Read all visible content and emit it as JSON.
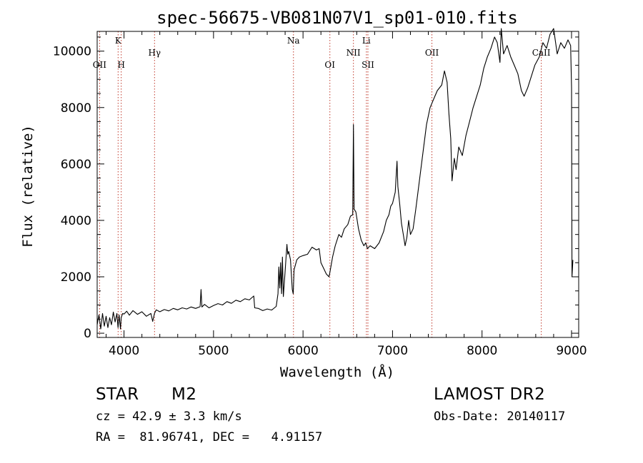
{
  "chart_data": {
    "type": "line",
    "title": "spec-56675-VB081N07V1_sp01-010.fits",
    "xlabel": "Wavelength (Å)",
    "ylabel": "Flux (relative)",
    "xlim": [
      3700,
      9080
    ],
    "ylim": [
      -150,
      10700
    ],
    "x_ticks": [
      4000,
      5000,
      6000,
      7000,
      8000,
      9000
    ],
    "x_tick_labels": [
      "4000",
      "5000",
      "6000",
      "7000",
      "8000",
      "9000"
    ],
    "y_ticks": [
      0,
      2000,
      4000,
      6000,
      8000,
      10000
    ],
    "y_tick_labels": [
      "0",
      "2000",
      "4000",
      "6000",
      "8000",
      "10000"
    ],
    "grid": false,
    "series": [
      {
        "color": "#000000",
        "points": [
          [
            3700,
            300
          ],
          [
            3720,
            650
          ],
          [
            3740,
            150
          ],
          [
            3760,
            700
          ],
          [
            3780,
            250
          ],
          [
            3800,
            600
          ],
          [
            3820,
            200
          ],
          [
            3840,
            550
          ],
          [
            3860,
            300
          ],
          [
            3880,
            750
          ],
          [
            3900,
            400
          ],
          [
            3920,
            700
          ],
          [
            3933,
            200
          ],
          [
            3945,
            650
          ],
          [
            3960,
            150
          ],
          [
            3968,
            550
          ],
          [
            3985,
            700
          ],
          [
            4000,
            680
          ],
          [
            4030,
            780
          ],
          [
            4060,
            640
          ],
          [
            4100,
            800
          ],
          [
            4150,
            670
          ],
          [
            4200,
            760
          ],
          [
            4250,
            600
          ],
          [
            4300,
            700
          ],
          [
            4320,
            420
          ],
          [
            4340,
            700
          ],
          [
            4360,
            830
          ],
          [
            4400,
            760
          ],
          [
            4450,
            840
          ],
          [
            4500,
            790
          ],
          [
            4550,
            880
          ],
          [
            4600,
            830
          ],
          [
            4650,
            900
          ],
          [
            4700,
            860
          ],
          [
            4750,
            930
          ],
          [
            4800,
            880
          ],
          [
            4850,
            940
          ],
          [
            4861,
            1550
          ],
          [
            4870,
            930
          ],
          [
            4900,
            1020
          ],
          [
            4950,
            900
          ],
          [
            5000,
            980
          ],
          [
            5050,
            1050
          ],
          [
            5100,
            1000
          ],
          [
            5150,
            1120
          ],
          [
            5200,
            1060
          ],
          [
            5250,
            1170
          ],
          [
            5300,
            1120
          ],
          [
            5350,
            1220
          ],
          [
            5400,
            1180
          ],
          [
            5450,
            1320
          ],
          [
            5460,
            900
          ],
          [
            5500,
            880
          ],
          [
            5550,
            800
          ],
          [
            5600,
            860
          ],
          [
            5650,
            820
          ],
          [
            5700,
            950
          ],
          [
            5720,
            1400
          ],
          [
            5730,
            2350
          ],
          [
            5740,
            1600
          ],
          [
            5750,
            2500
          ],
          [
            5760,
            1400
          ],
          [
            5770,
            2700
          ],
          [
            5780,
            1300
          ],
          [
            5800,
            2200
          ],
          [
            5820,
            3150
          ],
          [
            5830,
            2800
          ],
          [
            5840,
            2900
          ],
          [
            5860,
            2600
          ],
          [
            5880,
            1550
          ],
          [
            5890,
            1400
          ],
          [
            5900,
            2250
          ],
          [
            5930,
            2600
          ],
          [
            5960,
            2700
          ],
          [
            6000,
            2750
          ],
          [
            6050,
            2800
          ],
          [
            6100,
            3050
          ],
          [
            6150,
            2950
          ],
          [
            6180,
            3000
          ],
          [
            6200,
            2500
          ],
          [
            6230,
            2300
          ],
          [
            6260,
            2100
          ],
          [
            6290,
            2000
          ],
          [
            6300,
            2150
          ],
          [
            6330,
            2700
          ],
          [
            6360,
            3100
          ],
          [
            6400,
            3500
          ],
          [
            6430,
            3400
          ],
          [
            6460,
            3700
          ],
          [
            6500,
            3850
          ],
          [
            6530,
            4150
          ],
          [
            6555,
            4200
          ],
          [
            6563,
            7400
          ],
          [
            6570,
            4400
          ],
          [
            6590,
            4300
          ],
          [
            6620,
            3700
          ],
          [
            6650,
            3300
          ],
          [
            6680,
            3100
          ],
          [
            6700,
            3200
          ],
          [
            6720,
            3000
          ],
          [
            6750,
            3100
          ],
          [
            6800,
            3000
          ],
          [
            6850,
            3200
          ],
          [
            6900,
            3600
          ],
          [
            6930,
            4000
          ],
          [
            6960,
            4200
          ],
          [
            6980,
            4500
          ],
          [
            7000,
            4600
          ],
          [
            7030,
            5000
          ],
          [
            7050,
            6100
          ],
          [
            7060,
            5200
          ],
          [
            7080,
            4600
          ],
          [
            7100,
            3900
          ],
          [
            7120,
            3500
          ],
          [
            7140,
            3100
          ],
          [
            7160,
            3400
          ],
          [
            7180,
            4000
          ],
          [
            7200,
            3500
          ],
          [
            7230,
            3700
          ],
          [
            7260,
            4400
          ],
          [
            7300,
            5400
          ],
          [
            7340,
            6400
          ],
          [
            7380,
            7400
          ],
          [
            7420,
            8000
          ],
          [
            7460,
            8300
          ],
          [
            7500,
            8600
          ],
          [
            7550,
            8800
          ],
          [
            7580,
            9300
          ],
          [
            7610,
            8900
          ],
          [
            7630,
            7800
          ],
          [
            7650,
            6900
          ],
          [
            7665,
            5400
          ],
          [
            7690,
            6200
          ],
          [
            7710,
            5800
          ],
          [
            7740,
            6600
          ],
          [
            7780,
            6300
          ],
          [
            7820,
            7000
          ],
          [
            7860,
            7500
          ],
          [
            7900,
            8000
          ],
          [
            7940,
            8400
          ],
          [
            7980,
            8800
          ],
          [
            8020,
            9400
          ],
          [
            8060,
            9800
          ],
          [
            8100,
            10100
          ],
          [
            8140,
            10500
          ],
          [
            8170,
            10300
          ],
          [
            8200,
            9600
          ],
          [
            8215,
            10800
          ],
          [
            8240,
            9900
          ],
          [
            8280,
            10200
          ],
          [
            8320,
            9800
          ],
          [
            8360,
            9500
          ],
          [
            8400,
            9200
          ],
          [
            8440,
            8600
          ],
          [
            8470,
            8400
          ],
          [
            8510,
            8700
          ],
          [
            8550,
            9100
          ],
          [
            8590,
            9500
          ],
          [
            8640,
            9800
          ],
          [
            8680,
            10300
          ],
          [
            8720,
            10100
          ],
          [
            8760,
            10600
          ],
          [
            8800,
            10800
          ],
          [
            8840,
            9900
          ],
          [
            8880,
            10300
          ],
          [
            8920,
            10100
          ],
          [
            8960,
            10400
          ],
          [
            8990,
            10200
          ],
          [
            9000,
            8700
          ],
          [
            9005,
            2000
          ],
          [
            9015,
            2600
          ]
        ]
      }
    ],
    "lines": [
      {
        "label": "OII",
        "x": 3727,
        "label_row": 2
      },
      {
        "label": "K",
        "x": 3934,
        "label_row": 1
      },
      {
        "label": "H",
        "x": 3969,
        "label_row": 2
      },
      {
        "label": "Hγ",
        "x": 4341,
        "label_row": 1.5
      },
      {
        "label": "Na",
        "x": 5893,
        "label_row": 1
      },
      {
        "label": "OI",
        "x": 6300,
        "label_row": 2
      },
      {
        "label": "NII",
        "x": 6563,
        "label_row": 1.5
      },
      {
        "label": "Li",
        "x": 6708,
        "label_row": 1
      },
      {
        "label": "SII",
        "x": 6725,
        "label_row": 2
      },
      {
        "label": "OII",
        "x": 7440,
        "label_row": 1.5
      },
      {
        "label": "CaII",
        "x": 8662,
        "label_row": 1.5
      }
    ],
    "line_color": "#c0392b"
  },
  "info": {
    "object_type": "STAR",
    "subclass": "M2",
    "survey": "LAMOST DR2",
    "redshift": "cz = 42.9 ± 3.3 km/s",
    "obs_date": "Obs-Date: 20140117",
    "coords": "RA =  81.96741, DEC =   4.91157"
  }
}
